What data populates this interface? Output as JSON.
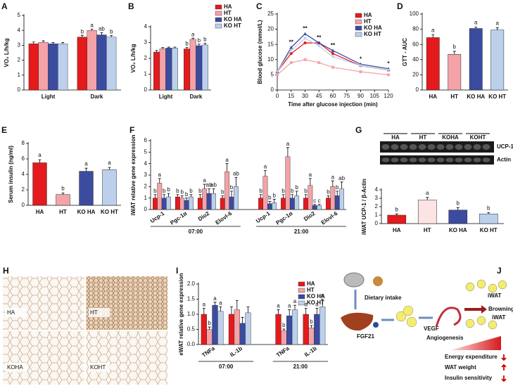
{
  "chart_data": [
    {
      "panel": "A",
      "type": "bar",
      "y_label": "VO₂ L/h/kg",
      "categories": [
        "Light",
        "Dark"
      ],
      "ylim": [
        0,
        5
      ],
      "yticks": [
        0,
        1,
        2,
        3,
        4,
        5
      ],
      "series": [
        {
          "color": "#e41a1c",
          "values": [
            3.1,
            3.55
          ],
          "errors": [
            0.12,
            0.12
          ],
          "letters": [
            null,
            "b"
          ]
        },
        {
          "color": "#f4a3a8",
          "values": [
            3.2,
            4.0
          ],
          "errors": [
            0.1,
            0.08
          ],
          "letters": [
            null,
            "a"
          ]
        },
        {
          "color": "#3b4ba0",
          "values": [
            3.1,
            3.7
          ],
          "errors": [
            0.08,
            0.15
          ],
          "letters": [
            null,
            "ab"
          ]
        },
        {
          "color": "#bcd0ec",
          "values": [
            3.1,
            3.55
          ],
          "errors": [
            0.08,
            0.1
          ],
          "letters": [
            null,
            "b"
          ]
        }
      ]
    },
    {
      "panel": "B",
      "type": "bar",
      "y_label": "VO₂ L/h/kg",
      "categories": [
        "Light",
        "Dark"
      ],
      "ylim": [
        0,
        4
      ],
      "yticks": [
        0,
        1,
        2,
        3,
        4
      ],
      "legend": true,
      "series": [
        {
          "name": "HA",
          "color": "#e41a1c",
          "values": [
            2.4,
            2.6
          ],
          "errors": [
            0.1,
            0.1
          ],
          "letters": [
            null,
            "b"
          ]
        },
        {
          "name": "HT",
          "color": "#f4a3a8",
          "values": [
            2.6,
            3.2
          ],
          "errors": [
            0.08,
            0.08
          ],
          "letters": [
            null,
            "a"
          ]
        },
        {
          "name": "KO HA",
          "color": "#3b4ba0",
          "values": [
            2.65,
            2.8
          ],
          "errors": [
            0.06,
            0.1
          ],
          "letters": [
            null,
            "b"
          ]
        },
        {
          "name": "KO HT",
          "color": "#bcd0ec",
          "values": [
            2.65,
            2.85
          ],
          "errors": [
            0.06,
            0.1
          ],
          "letters": [
            null,
            "b"
          ]
        }
      ]
    },
    {
      "panel": "C",
      "type": "line",
      "y_label": "Blood glucose (mmol/L)",
      "x_label": "Time after glucose injection (min)",
      "x": [
        0,
        15,
        30,
        45,
        60,
        90,
        120
      ],
      "xlim": [
        0,
        120
      ],
      "xticks": [
        0,
        15,
        30,
        45,
        60,
        75,
        90,
        105,
        120
      ],
      "ylim": [
        0,
        25
      ],
      "yticks": [
        0,
        5,
        10,
        15,
        20,
        25
      ],
      "legend": true,
      "series": [
        {
          "name": "HA",
          "color": "#e41a1c",
          "values": [
            6,
            12,
            15.5,
            15.5,
            12,
            8,
            6.5
          ]
        },
        {
          "name": "HT",
          "color": "#f4a3a8",
          "values": [
            5,
            9,
            10,
            9,
            7.5,
            6,
            5
          ]
        },
        {
          "name": "KO HA",
          "color": "#3b4ba0",
          "values": [
            6,
            14,
            18.5,
            15.5,
            13,
            8.5,
            7
          ]
        },
        {
          "name": "KO HT",
          "color": "#bcd0ec",
          "values": [
            6,
            13,
            17,
            14.5,
            11,
            8,
            6.5
          ]
        }
      ],
      "annotations": [
        {
          "x": 15,
          "text": "**"
        },
        {
          "x": 30,
          "text": "**"
        },
        {
          "x": 45,
          "text": "**"
        },
        {
          "x": 60,
          "text": "**"
        },
        {
          "x": 90,
          "text": "*"
        },
        {
          "x": 120,
          "text": "*"
        }
      ]
    },
    {
      "panel": "D",
      "type": "bar",
      "y_label": "GTT - AUC",
      "categories": [
        "HA",
        "HT",
        "KO HA",
        "KO HT"
      ],
      "values": [
        69,
        47,
        81,
        79
      ],
      "errors": [
        4,
        4,
        2,
        3
      ],
      "letters": [
        "a",
        "b",
        "a",
        "a"
      ],
      "colors": [
        "#e41a1c",
        "#f4a3a8",
        "#3b4ba0",
        "#bcd0ec"
      ],
      "ylim": [
        0,
        100
      ],
      "yticks": [
        0,
        20,
        40,
        60,
        80,
        100
      ]
    },
    {
      "panel": "E",
      "type": "bar",
      "y_label": "Serum insulin (ng/ml)",
      "categories": [
        "HA",
        "HT",
        "KO HA",
        "KO HT"
      ],
      "values": [
        5.5,
        1.4,
        4.4,
        4.6
      ],
      "errors": [
        0.4,
        0.2,
        0.4,
        0.3
      ],
      "letters": [
        "a",
        "b",
        "a",
        "a"
      ],
      "colors": [
        "#e41a1c",
        "#f4a3a8",
        "#3b4ba0",
        "#bcd0ec"
      ],
      "ylim": [
        0,
        8
      ],
      "yticks": [
        0,
        2,
        4,
        6,
        8
      ]
    },
    {
      "panel": "F",
      "type": "bar",
      "y_label": "iWAT relative gene expression",
      "group_labels": [
        "07:00",
        "21:00"
      ],
      "categories": [
        "Ucp-1",
        "Pgc-1α",
        "Dio2",
        "Elovl-6",
        "Ucp-1",
        "Pgc-1α",
        "Dio2",
        "Elovl-6"
      ],
      "ylim": [
        0,
        6
      ],
      "yticks": [
        0,
        1,
        2,
        3,
        4,
        5,
        6
      ],
      "series": [
        {
          "color": "#e41a1c",
          "values": [
            1,
            1.1,
            1,
            1,
            1,
            1,
            1,
            1
          ],
          "errors": [
            0.3,
            0.2,
            0.3,
            0.2,
            0.3,
            0.3,
            0.3,
            0.2
          ],
          "letters": [
            "b",
            "b",
            "b",
            "b",
            "b",
            "b",
            "b",
            "b"
          ]
        },
        {
          "color": "#f4a3a8",
          "values": [
            2.3,
            1,
            1.8,
            3.3,
            2.9,
            4.6,
            2.1,
            2
          ],
          "errors": [
            0.4,
            0.2,
            0.4,
            0.7,
            0.5,
            0.8,
            0.6,
            0.5
          ],
          "letters": [
            "a",
            "b",
            "a",
            "a",
            "a",
            "a",
            "a",
            "a"
          ]
        },
        {
          "color": "#3b4ba0",
          "values": [
            1,
            0.8,
            1.4,
            1.1,
            0.5,
            1,
            0.35,
            1.2
          ],
          "errors": [
            0.3,
            0.2,
            0.4,
            0.5,
            0.2,
            0.3,
            0.1,
            0.4
          ],
          "letters": [
            "b",
            "b",
            "ab",
            "b",
            "b",
            "b",
            "c",
            "b"
          ]
        },
        {
          "color": "#bcd0ec",
          "values": [
            1.1,
            1.1,
            1.4,
            2,
            0.6,
            1.2,
            0.35,
            1.8
          ],
          "errors": [
            0.3,
            0.2,
            0.4,
            0.8,
            0.3,
            0.4,
            0.1,
            0.6
          ],
          "letters": [
            "b",
            "b",
            "ab",
            "ab",
            "b",
            "b",
            "c",
            "ab"
          ]
        }
      ]
    },
    {
      "panel": "G",
      "type": "bar",
      "y_label": "iWAT UCP-1 / β-Actin",
      "categories": [
        "HA",
        "HT",
        "KO HA",
        "KO HT"
      ],
      "values": [
        1.0,
        2.8,
        1.6,
        1.15
      ],
      "errors": [
        0.15,
        0.3,
        0.3,
        0.15
      ],
      "letters": [
        "b",
        "a",
        "b",
        "b"
      ],
      "colors": [
        "#e41a1c",
        "#fde3e3",
        "#3b4ba0",
        "#bcd0ec"
      ],
      "ylim": [
        0,
        4
      ],
      "yticks": [
        0,
        1,
        2,
        3,
        4
      ]
    },
    {
      "panel": "I",
      "type": "bar",
      "y_label": "eWAT relative gene expression",
      "group_labels": [
        "07:00",
        "21:00"
      ],
      "legend": true,
      "categories": [
        "TNFa",
        "IL-1b",
        "TNFa",
        "IL-1b"
      ],
      "ylim": [
        0,
        2
      ],
      "yticks": [
        {
          "value": 0,
          "label": "0.0"
        },
        0.5,
        {
          "value": 1,
          "label": "1.0"
        },
        1.5,
        {
          "value": 2,
          "label": "2.0"
        }
      ],
      "series": [
        {
          "name": "HA",
          "color": "#e41a1c",
          "values": [
            1.0,
            1.0,
            1.0,
            1.0
          ],
          "errors": [
            0.2,
            0.25,
            0.15,
            0.2
          ],
          "letters": [
            "a",
            null,
            "a",
            "a"
          ]
        },
        {
          "name": "HT",
          "color": "#f4a3a8",
          "values": [
            0.5,
            1.15,
            0.45,
            0.55
          ],
          "errors": [
            0.08,
            0.3,
            0.06,
            0.08
          ],
          "letters": [
            "b",
            null,
            "b",
            "b"
          ]
        },
        {
          "name": "KO HA",
          "color": "#3b4ba0",
          "values": [
            1.3,
            0.7,
            0.95,
            1.0
          ],
          "errors": [
            0.1,
            0.2,
            0.2,
            0.2
          ],
          "letters": [
            "a",
            null,
            "a",
            "a"
          ]
        },
        {
          "name": "KO HT",
          "color": "#bcd0ec",
          "values": [
            1.1,
            1.05,
            1.15,
            1.25
          ],
          "errors": [
            0.15,
            0.2,
            0.15,
            0.25
          ],
          "letters": [
            "a",
            null,
            "a",
            "a"
          ]
        }
      ]
    }
  ],
  "blot": {
    "panel": "G",
    "lanes": [
      "HA",
      "HT",
      "KOHA",
      "KOHT"
    ],
    "bands": [
      "UCP-1",
      "Actin"
    ]
  },
  "histology": {
    "panel": "H",
    "labels": [
      "HA",
      "HT",
      "KOHA",
      "KOHT"
    ]
  },
  "diagram": {
    "panel": "J",
    "intake": "Dietary intake",
    "fgf21": "FGF21",
    "vegf": "VEGF",
    "angiogenesis": "Angiogenesis",
    "browning": "Browning",
    "iwat_top": "iWAT",
    "iwat_bottom": "iWAT",
    "energy": "Energy expenditure",
    "wat_weight": "WAT weight",
    "insulin": "Insulin sensitivity"
  }
}
